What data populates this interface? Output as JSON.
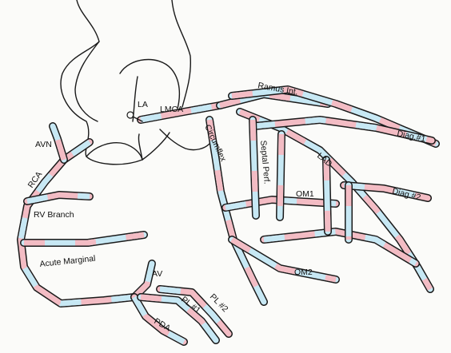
{
  "colors": {
    "vessel_blue": "#c7e8f4",
    "vessel_pink": "#f3bcc4",
    "outline": "#1a1a1a",
    "paper": "#fbfbf9"
  },
  "labels": {
    "la": "LA",
    "lmca": "LMCA",
    "ramus": "Ramus Int.",
    "avn": "AVN",
    "rca": "RCA",
    "circumflex": "Circumflex",
    "septal": "Septal Perf.",
    "lad": "LAD",
    "diag1": "Diag.#1",
    "diag2": "Diag.#2",
    "om1": "OM1",
    "om2": "OM2",
    "rv_branch": "RV Branch",
    "acute_marginal": "Acute Marginal",
    "av": "AV",
    "pda": "PDA",
    "pl1": "PL #1",
    "pl2": "PL #2"
  }
}
